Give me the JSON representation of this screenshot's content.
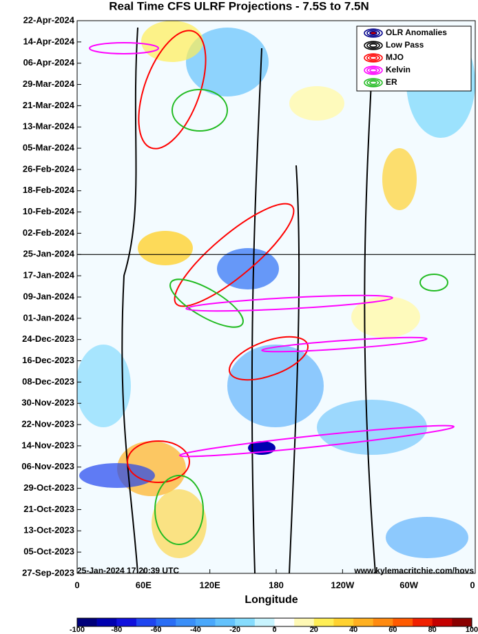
{
  "chart_data": {
    "type": "hovmoller",
    "title": "Real Time CFS ULRF Projections - 7.5S to 7.5N",
    "xlabel": "Longitude",
    "xlim": [
      0,
      360
    ],
    "xticks": [
      0,
      {
        "value": 60,
        "label": "60E"
      },
      {
        "value": 120,
        "label": "120E"
      },
      180,
      {
        "value": 240,
        "label": "120W"
      },
      {
        "value": 300,
        "label": "60W"
      },
      {
        "value": 360,
        "label": "0"
      }
    ],
    "yticks": [
      "22-Apr-2024",
      "14-Apr-2024",
      "06-Apr-2024",
      "29-Mar-2024",
      "21-Mar-2024",
      "13-Mar-2024",
      "05-Mar-2024",
      "26-Feb-2024",
      "18-Feb-2024",
      "10-Feb-2024",
      "02-Feb-2024",
      "25-Jan-2024",
      "17-Jan-2024",
      "09-Jan-2024",
      "01-Jan-2024",
      "24-Dec-2023",
      "16-Dec-2023",
      "08-Dec-2023",
      "30-Nov-2023",
      "22-Nov-2023",
      "14-Nov-2023",
      "06-Nov-2023",
      "29-Oct-2023",
      "21-Oct-2023",
      "13-Oct-2023",
      "05-Oct-2023",
      "27-Sep-2023"
    ],
    "marker_line": "25-Jan-2024",
    "legend": [
      {
        "name": "OLR Anomalies",
        "color": "#00008b"
      },
      {
        "name": "Low Pass",
        "color": "#000000"
      },
      {
        "name": "MJO",
        "color": "#ff0000"
      },
      {
        "name": "Kelvin",
        "color": "#ff00ff"
      },
      {
        "name": "ER",
        "color": "#22bb22"
      }
    ],
    "annotations": [
      "25-Jan-2024 17:20:39 UTC",
      "www.kylemacritchie.com/hovs"
    ],
    "colorbar": {
      "ticks": [
        -100,
        -80,
        -60,
        -40,
        -20,
        0,
        20,
        40,
        60,
        80,
        100
      ],
      "colors": [
        "#00007a",
        "#0000b0",
        "#1010dd",
        "#1f45f0",
        "#2a6ef5",
        "#3a8ff8",
        "#4aa8fb",
        "#63c2fc",
        "#86dcfd",
        "#c8f4fe",
        "#ffffff",
        "#fff9b5",
        "#ffee55",
        "#ffd230",
        "#ffb020",
        "#ff8a10",
        "#ff5a00",
        "#f02000",
        "#c40000",
        "#8a0000"
      ]
    }
  }
}
